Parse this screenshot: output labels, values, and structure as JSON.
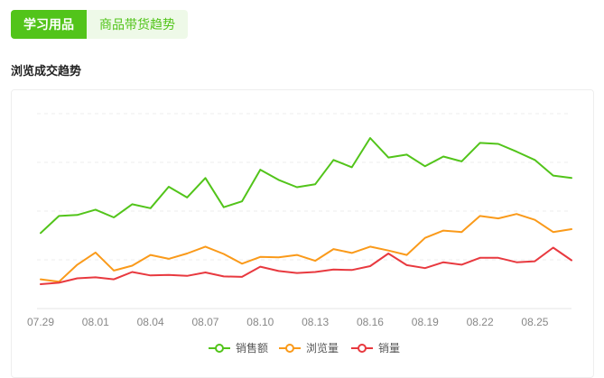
{
  "tabs": [
    {
      "label": "学习用品",
      "active": true
    },
    {
      "label": "商品带货趋势",
      "active": false
    }
  ],
  "section_title": "浏览成交趋势",
  "colors": {
    "accent": "#52c41a",
    "sales_amount": "#52c41a",
    "views": "#fa9a1a",
    "sales_volume": "#e8393f"
  },
  "chart_data": {
    "type": "line",
    "title": "",
    "x": [
      "07.29",
      "07.30",
      "07.31",
      "08.01",
      "08.02",
      "08.03",
      "08.04",
      "08.05",
      "08.06",
      "08.07",
      "08.08",
      "08.09",
      "08.10",
      "08.11",
      "08.12",
      "08.13",
      "08.14",
      "08.15",
      "08.16",
      "08.17",
      "08.18",
      "08.19",
      "08.20",
      "08.21",
      "08.22",
      "08.23",
      "08.24",
      "08.25",
      "08.26",
      "08.27"
    ],
    "x_tick_labels": [
      "07.29",
      "08.01",
      "08.04",
      "08.07",
      "08.10",
      "08.13",
      "08.16",
      "08.19",
      "08.22",
      "08.25"
    ],
    "ylim": [
      0,
      4
    ],
    "grid": true,
    "legend_position": "bottom-center",
    "series": [
      {
        "name": "销售额",
        "color": "#52c41a",
        "values": [
          1.55,
          1.9,
          1.92,
          2.03,
          1.87,
          2.14,
          2.06,
          2.5,
          2.28,
          2.68,
          2.08,
          2.2,
          2.85,
          2.64,
          2.49,
          2.55,
          3.05,
          2.9,
          3.5,
          3.1,
          3.16,
          2.92,
          3.12,
          3.02,
          3.4,
          3.38,
          3.22,
          3.05,
          2.73,
          2.68
        ]
      },
      {
        "name": "浏览量",
        "color": "#fa9a1a",
        "values": [
          0.6,
          0.55,
          0.9,
          1.15,
          0.78,
          0.88,
          1.1,
          1.02,
          1.13,
          1.27,
          1.12,
          0.92,
          1.06,
          1.05,
          1.1,
          0.98,
          1.22,
          1.14,
          1.27,
          1.19,
          1.1,
          1.45,
          1.6,
          1.57,
          1.9,
          1.85,
          1.94,
          1.82,
          1.57,
          1.63
        ]
      },
      {
        "name": "销量",
        "color": "#e8393f",
        "values": [
          0.5,
          0.53,
          0.62,
          0.64,
          0.6,
          0.75,
          0.68,
          0.69,
          0.67,
          0.74,
          0.66,
          0.65,
          0.86,
          0.77,
          0.73,
          0.75,
          0.8,
          0.79,
          0.87,
          1.13,
          0.89,
          0.83,
          0.95,
          0.9,
          1.04,
          1.04,
          0.95,
          0.97,
          1.25,
          0.99
        ]
      }
    ]
  }
}
